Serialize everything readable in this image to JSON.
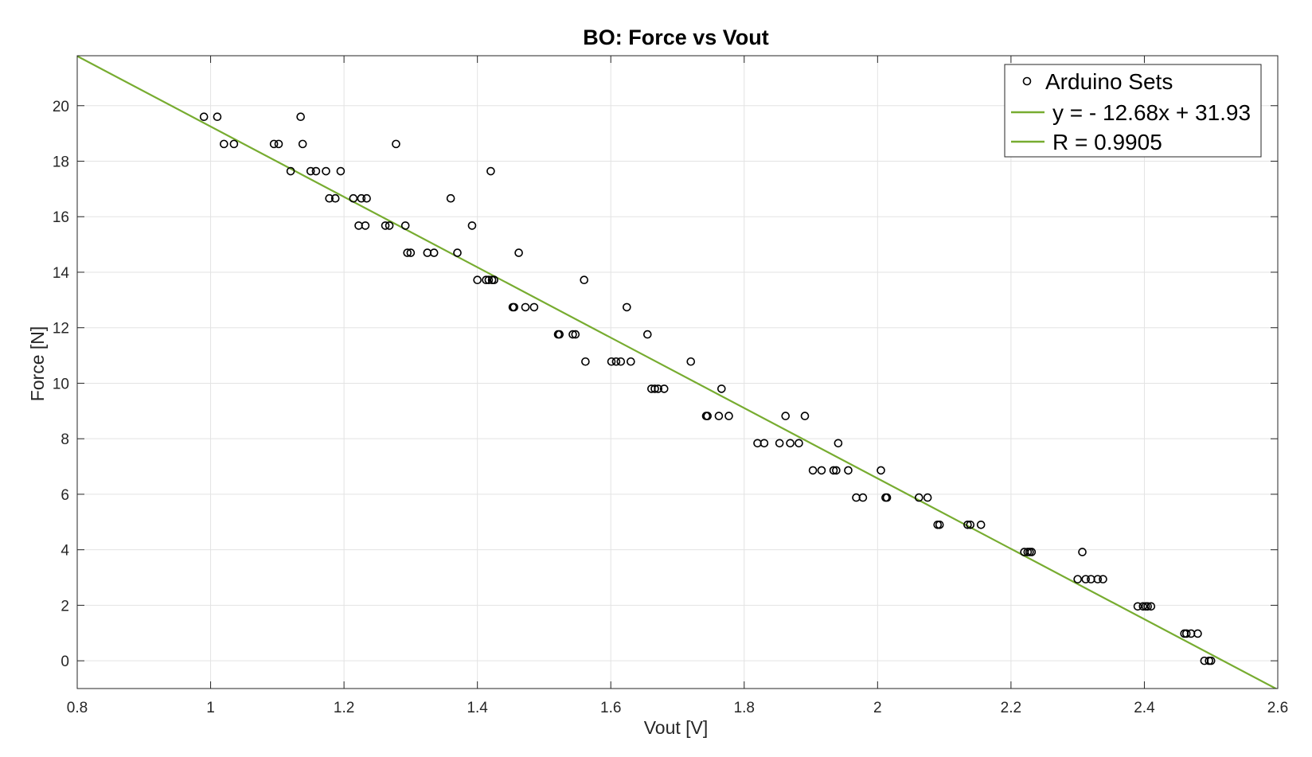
{
  "chart_data": {
    "type": "scatter",
    "title": "BO: Force vs Vout",
    "xlabel": "Vout [V]",
    "ylabel": "Force [N]",
    "xlim": [
      0.8,
      2.6
    ],
    "ylim": [
      -1,
      21.8
    ],
    "xticks": [
      "0.8",
      "1",
      "1.2",
      "1.4",
      "1.6",
      "1.8",
      "2",
      "2.2",
      "2.4",
      "2.6"
    ],
    "yticks": [
      "0",
      "2",
      "4",
      "6",
      "8",
      "10",
      "12",
      "14",
      "16",
      "18",
      "20"
    ],
    "grid": true,
    "legend_position": "top-right",
    "series": [
      {
        "name": "Arduino Sets",
        "kind": "markers",
        "marker": "open-circle",
        "color": "#000000",
        "x": [
          0.99,
          1.01,
          1.02,
          1.035,
          1.095,
          1.102,
          1.12,
          1.135,
          1.138,
          1.15,
          1.158,
          1.173,
          1.178,
          1.187,
          1.195,
          1.214,
          1.222,
          1.226,
          1.232,
          1.234,
          1.262,
          1.268,
          1.278,
          1.292,
          1.295,
          1.3,
          1.325,
          1.335,
          1.36,
          1.37,
          1.392,
          1.4,
          1.413,
          1.417,
          1.42,
          1.422,
          1.425,
          1.453,
          1.455,
          1.462,
          1.472,
          1.485,
          1.521,
          1.523,
          1.543,
          1.547,
          1.56,
          1.562,
          1.601,
          1.608,
          1.615,
          1.624,
          1.63,
          1.655,
          1.661,
          1.666,
          1.671,
          1.68,
          1.72,
          1.743,
          1.745,
          1.762,
          1.766,
          1.777,
          1.82,
          1.83,
          1.853,
          1.862,
          1.869,
          1.882,
          1.891,
          1.903,
          1.916,
          1.934,
          1.938,
          1.941,
          1.956,
          1.968,
          1.978,
          2.005,
          2.012,
          2.014,
          2.062,
          2.075,
          2.09,
          2.093,
          2.135,
          2.139,
          2.155,
          2.22,
          2.225,
          2.228,
          2.231,
          2.3,
          2.307,
          2.312,
          2.32,
          2.33,
          2.338,
          2.39,
          2.398,
          2.402,
          2.405,
          2.41,
          2.46,
          2.463,
          2.47,
          2.48,
          2.49,
          2.497,
          2.5
        ],
        "y": [
          19.6,
          19.6,
          18.62,
          18.62,
          18.62,
          18.62,
          17.64,
          19.6,
          18.62,
          17.64,
          17.64,
          17.64,
          16.66,
          16.66,
          17.64,
          16.66,
          15.68,
          16.66,
          15.68,
          16.66,
          15.68,
          15.68,
          18.62,
          15.68,
          14.7,
          14.7,
          14.7,
          14.7,
          16.66,
          14.7,
          15.68,
          13.72,
          13.72,
          13.72,
          17.64,
          13.72,
          13.72,
          12.74,
          12.74,
          14.7,
          12.74,
          12.74,
          11.76,
          11.76,
          11.76,
          11.76,
          13.72,
          10.78,
          10.78,
          10.78,
          10.78,
          12.74,
          10.78,
          11.76,
          9.8,
          9.8,
          9.8,
          9.8,
          10.78,
          8.82,
          8.82,
          8.82,
          9.8,
          8.82,
          7.84,
          7.84,
          7.84,
          8.82,
          7.84,
          7.84,
          8.82,
          6.86,
          6.86,
          6.86,
          6.86,
          7.84,
          6.86,
          5.88,
          5.88,
          6.86,
          5.88,
          5.88,
          5.88,
          5.88,
          4.9,
          4.9,
          4.9,
          4.9,
          4.9,
          3.92,
          3.92,
          3.92,
          3.92,
          2.94,
          3.92,
          2.94,
          2.94,
          2.94,
          2.94,
          1.96,
          1.96,
          1.96,
          1.96,
          1.96,
          0.98,
          0.98,
          0.98,
          0.98,
          0,
          0,
          0
        ]
      },
      {
        "name": "y = - 12.68x + 31.93",
        "kind": "line",
        "color": "#77AC30",
        "slope": -12.68,
        "intercept": 31.93
      },
      {
        "name": "R = 0.9905",
        "kind": "legend-only",
        "color": "#77AC30"
      }
    ]
  }
}
